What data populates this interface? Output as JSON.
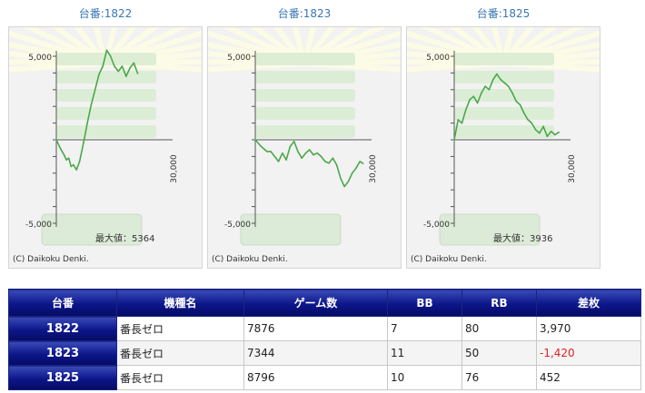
{
  "graphs": [
    {
      "title": "台番:1822",
      "y_top_label": "5,000",
      "y_bottom_label": "-5,000",
      "x_label": "30,000",
      "max_label": "最大値：5364",
      "copyright": "(C) Daikoku Denki.",
      "chart_data": {
        "type": "line",
        "ylim": [
          -5000,
          5000
        ],
        "xlim": [
          0,
          30000
        ],
        "x": [
          0,
          1000,
          2000,
          2600,
          3200,
          3800,
          4400,
          5200,
          6000,
          7000,
          8000,
          9000,
          10000,
          11000,
          12000,
          13000,
          14000,
          15000,
          16000,
          17000,
          18000,
          19000,
          20000,
          21000
        ],
        "values": [
          0,
          -500,
          -900,
          -1200,
          -1100,
          -1600,
          -1500,
          -1800,
          -1300,
          -200,
          1000,
          2100,
          3000,
          3900,
          4400,
          5364,
          5000,
          4400,
          4100,
          4400,
          3800,
          4300,
          4600,
          3970
        ]
      }
    },
    {
      "title": "台番:1823",
      "y_top_label": "5,000",
      "y_bottom_label": "-5,000",
      "x_label": "30,000",
      "max_label": "",
      "copyright": "(C) Daikoku Denki.",
      "chart_data": {
        "type": "line",
        "ylim": [
          -5000,
          5000
        ],
        "xlim": [
          0,
          30000
        ],
        "x": [
          0,
          1500,
          3000,
          4000,
          5000,
          6000,
          7000,
          8000,
          9000,
          10000,
          11000,
          12000,
          13000,
          14000,
          15000,
          16000,
          17000,
          18000,
          19000,
          20000,
          21000,
          22000,
          23000,
          24000,
          25000,
          26000,
          27000,
          27800
        ],
        "values": [
          0,
          -400,
          -700,
          -700,
          -1000,
          -1300,
          -800,
          -1200,
          -400,
          -100,
          -700,
          -1100,
          -800,
          -600,
          -900,
          -800,
          -1000,
          -1300,
          -1400,
          -1100,
          -1500,
          -2300,
          -2800,
          -2500,
          -2000,
          -1700,
          -1300,
          -1420
        ]
      }
    },
    {
      "title": "台番:1825",
      "y_top_label": "5,000",
      "y_bottom_label": "-5,000",
      "x_label": "30,000",
      "max_label": "最大値：3936",
      "copyright": "(C) Daikoku Denki.",
      "chart_data": {
        "type": "line",
        "ylim": [
          -5000,
          5000
        ],
        "xlim": [
          0,
          30000
        ],
        "x": [
          0,
          1000,
          2000,
          3000,
          4000,
          5000,
          6000,
          7000,
          8000,
          9000,
          10000,
          11000,
          12000,
          13000,
          14000,
          15000,
          16000,
          17000,
          18000,
          19000,
          20000,
          21000,
          22000,
          23000,
          24000,
          25000,
          26000,
          27000
        ],
        "values": [
          0,
          1200,
          1000,
          1800,
          2400,
          2600,
          2200,
          2800,
          3200,
          3000,
          3600,
          3936,
          3600,
          3400,
          3200,
          2800,
          2300,
          2100,
          1600,
          1200,
          1000,
          600,
          400,
          800,
          200,
          500,
          300,
          452
        ]
      }
    }
  ],
  "table": {
    "headers": [
      "台番",
      "機種名",
      "ゲーム数",
      "BB",
      "RB",
      "差枚"
    ],
    "rows": [
      {
        "id": "1822",
        "model": "番長ゼロ",
        "games": "7876",
        "bb": "7",
        "rb": "80",
        "diff": "3,970",
        "negative": false
      },
      {
        "id": "1823",
        "model": "番長ゼロ",
        "games": "7344",
        "bb": "11",
        "rb": "50",
        "diff": "-1,420",
        "negative": true
      },
      {
        "id": "1825",
        "model": "番長ゼロ",
        "games": "8796",
        "bb": "10",
        "rb": "76",
        "diff": "452",
        "negative": false
      }
    ]
  },
  "colors": {
    "line": "#4aa84a",
    "header_blue": "#0c168a",
    "title_blue": "#3a78b5",
    "negative": "#e02020"
  }
}
